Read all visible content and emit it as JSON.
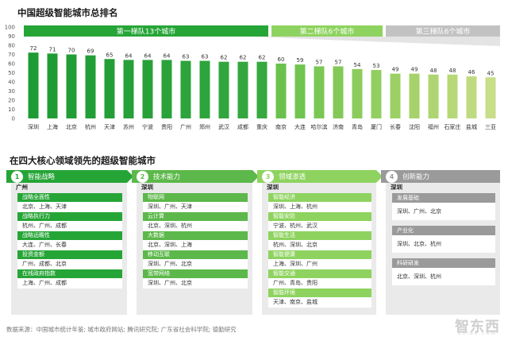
{
  "title_top": "中国超级智能城市总排名",
  "title_bottom": "在四大核心领域领先的超级智能城市",
  "tier_bands": [
    {
      "label": "第一梯队13个城市",
      "start": 0,
      "end": 12,
      "color": "#26a537"
    },
    {
      "label": "第二梯队6个城市",
      "start": 13,
      "end": 18,
      "color": "#8ed35f"
    },
    {
      "label": "第三梯队6个城市",
      "start": 19,
      "end": 24,
      "color": "#c2c2c2"
    }
  ],
  "chart_data": {
    "type": "bar",
    "title": "中国超级智能城市总排名",
    "xlabel": "",
    "ylabel": "",
    "ylim": [
      0,
      100
    ],
    "yticks": [
      0,
      10,
      20,
      30,
      40,
      50,
      60,
      70,
      80,
      90,
      100
    ],
    "grid": false,
    "categories": [
      "深圳",
      "上海",
      "北京",
      "杭州",
      "天津",
      "苏州",
      "宁波",
      "贵阳",
      "广州",
      "郑州",
      "武汉",
      "成都",
      "重庆",
      "南京",
      "大连",
      "哈尔滨",
      "济南",
      "青岛",
      "厦门",
      "长春",
      "沈阳",
      "福州",
      "石家庄",
      "盐城",
      "三亚"
    ],
    "values": [
      72,
      71,
      70,
      69,
      65,
      64,
      64,
      64,
      63,
      63,
      62,
      62,
      62,
      60,
      59,
      57,
      57,
      54,
      53,
      49,
      49,
      48,
      48,
      46,
      45
    ],
    "bar_colors": [
      "#1e9b34",
      "#1f9c34",
      "#219d35",
      "#229e36",
      "#249f37",
      "#26a038",
      "#28a139",
      "#2aa23a",
      "#2ca33b",
      "#2ea43c",
      "#31a63d",
      "#33a73e",
      "#36a93f",
      "#6cc14c",
      "#72c450",
      "#7ac754",
      "#82c958",
      "#8bcc5c",
      "#93cf60",
      "#9dd064",
      "#a6d26a",
      "#aed571",
      "#b6d878",
      "#bfdb7f",
      "#c8de88"
    ]
  },
  "pillars": [
    {
      "num": "1",
      "title": "智能战略",
      "city": "广州",
      "color": "#26a537",
      "items": [
        {
          "label": "战略全面性",
          "value": "北京、上海、天津"
        },
        {
          "label": "战略执行力",
          "value": "杭州、广州、成都"
        },
        {
          "label": "战略远瞻性",
          "value": "大连、广州、长春"
        },
        {
          "label": "投资金额",
          "value": "广州、成都、北京"
        },
        {
          "label": "在线政府指数",
          "value": "上海、广州、成都"
        }
      ]
    },
    {
      "num": "2",
      "title": "技术能力",
      "city": "深圳",
      "color": "#5cb84a",
      "items": [
        {
          "label": "物联网",
          "value": "深圳、广州、天津"
        },
        {
          "label": "云计算",
          "value": "北京、深圳、杭州"
        },
        {
          "label": "大数据",
          "value": "北京、深圳、上海"
        },
        {
          "label": "移动互联",
          "value": "深圳、广州、北京"
        },
        {
          "label": "宽带网络",
          "value": "深圳、广州、北京"
        }
      ]
    },
    {
      "num": "3",
      "title": "领域渗透",
      "city": "深圳",
      "color": "#8ed35f",
      "items": [
        {
          "label": "智能经济",
          "value": "深圳、上海、杭州"
        },
        {
          "label": "智能安防",
          "value": "宁波、杭州、武汉"
        },
        {
          "label": "智能生活",
          "value": "杭州、深圳、北京"
        },
        {
          "label": "智能健康",
          "value": "上海、深圳、广州"
        },
        {
          "label": "智能交通",
          "value": "广州、青岛、贵阳"
        },
        {
          "label": "智能环境",
          "value": "天津、南京、盐城"
        }
      ]
    },
    {
      "num": "4",
      "title": "创新能力",
      "city": "深圳",
      "color": "#9a9a9a",
      "items": [
        {
          "label": "发展基础",
          "value": "深圳、广州、北京"
        },
        {
          "label": "产业化",
          "value": "深圳、北京、杭州"
        },
        {
          "label": "科研研发",
          "value": "北京、深圳、杭州"
        }
      ]
    }
  ],
  "source": "数据来源：中国城市统计年鉴; 城市政府网站; 腾讯研究院; 广东省社会科学院; 德勤研究",
  "watermark": "智东西",
  "watermark_sub": "zhidx.com"
}
